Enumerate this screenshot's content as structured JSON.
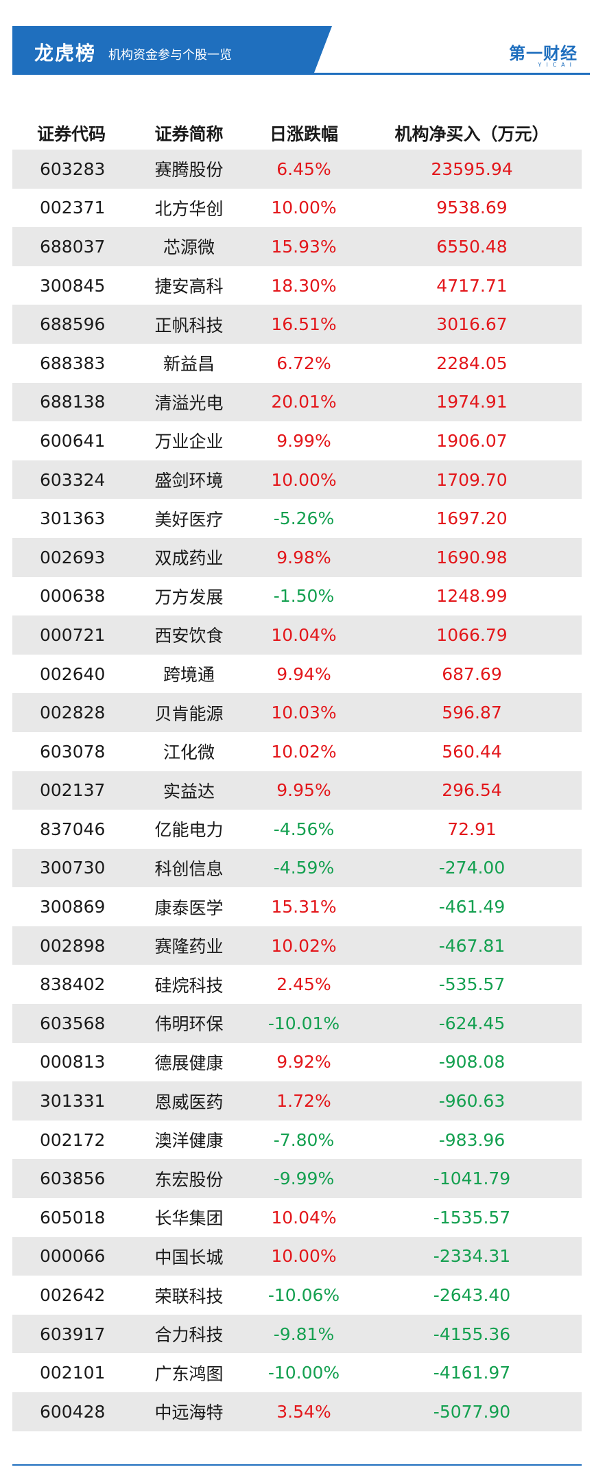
{
  "banner": {
    "title": "龙虎榜",
    "subtitle": "机构资金参与个股一览"
  },
  "logo": {
    "name": "第一财经",
    "sub": "YICAI"
  },
  "colors": {
    "up": "#e3171b",
    "down": "#14a050",
    "brand": "#1f6fbe",
    "row_shade": "#e8e8e8"
  },
  "table": {
    "headers": [
      "证券代码",
      "证券简称",
      "日涨跌幅",
      "机构净买入（万元）"
    ],
    "rows": [
      {
        "code": "603283",
        "name": "赛腾股份",
        "change": "6.45%",
        "net": "23595.94"
      },
      {
        "code": "002371",
        "name": "北方华创",
        "change": "10.00%",
        "net": "9538.69"
      },
      {
        "code": "688037",
        "name": "芯源微",
        "change": "15.93%",
        "net": "6550.48"
      },
      {
        "code": "300845",
        "name": "捷安高科",
        "change": "18.30%",
        "net": "4717.71"
      },
      {
        "code": "688596",
        "name": "正帆科技",
        "change": "16.51%",
        "net": "3016.67"
      },
      {
        "code": "688383",
        "name": "新益昌",
        "change": "6.72%",
        "net": "2284.05"
      },
      {
        "code": "688138",
        "name": "清溢光电",
        "change": "20.01%",
        "net": "1974.91"
      },
      {
        "code": "600641",
        "name": "万业企业",
        "change": "9.99%",
        "net": "1906.07"
      },
      {
        "code": "603324",
        "name": "盛剑环境",
        "change": "10.00%",
        "net": "1709.70"
      },
      {
        "code": "301363",
        "name": "美好医疗",
        "change": "-5.26%",
        "net": "1697.20"
      },
      {
        "code": "002693",
        "name": "双成药业",
        "change": "9.98%",
        "net": "1690.98"
      },
      {
        "code": "000638",
        "name": "万方发展",
        "change": "-1.50%",
        "net": "1248.99"
      },
      {
        "code": "000721",
        "name": "西安饮食",
        "change": "10.04%",
        "net": "1066.79"
      },
      {
        "code": "002640",
        "name": "跨境通",
        "change": "9.94%",
        "net": "687.69"
      },
      {
        "code": "002828",
        "name": "贝肯能源",
        "change": "10.03%",
        "net": "596.87"
      },
      {
        "code": "603078",
        "name": "江化微",
        "change": "10.02%",
        "net": "560.44"
      },
      {
        "code": "002137",
        "name": "实益达",
        "change": "9.95%",
        "net": "296.54"
      },
      {
        "code": "837046",
        "name": "亿能电力",
        "change": "-4.56%",
        "net": "72.91"
      },
      {
        "code": "300730",
        "name": "科创信息",
        "change": "-4.59%",
        "net": "-274.00"
      },
      {
        "code": "300869",
        "name": "康泰医学",
        "change": "15.31%",
        "net": "-461.49"
      },
      {
        "code": "002898",
        "name": "赛隆药业",
        "change": "10.02%",
        "net": "-467.81"
      },
      {
        "code": "838402",
        "name": "硅烷科技",
        "change": "2.45%",
        "net": "-535.57"
      },
      {
        "code": "603568",
        "name": "伟明环保",
        "change": "-10.01%",
        "net": "-624.45"
      },
      {
        "code": "000813",
        "name": "德展健康",
        "change": "9.92%",
        "net": "-908.08"
      },
      {
        "code": "301331",
        "name": "恩威医药",
        "change": "1.72%",
        "net": "-960.63"
      },
      {
        "code": "002172",
        "name": "澳洋健康",
        "change": "-7.80%",
        "net": "-983.96"
      },
      {
        "code": "603856",
        "name": "东宏股份",
        "change": "-9.99%",
        "net": "-1041.79"
      },
      {
        "code": "605018",
        "name": "长华集团",
        "change": "10.04%",
        "net": "-1535.57"
      },
      {
        "code": "000066",
        "name": "中国长城",
        "change": "10.00%",
        "net": "-2334.31"
      },
      {
        "code": "002642",
        "name": "荣联科技",
        "change": "-10.06%",
        "net": "-2643.40"
      },
      {
        "code": "603917",
        "name": "合力科技",
        "change": "-9.81%",
        "net": "-4155.36"
      },
      {
        "code": "002101",
        "name": "广东鸿图",
        "change": "-10.00%",
        "net": "-4161.97"
      },
      {
        "code": "600428",
        "name": "中远海特",
        "change": "3.54%",
        "net": "-5077.90"
      }
    ]
  }
}
